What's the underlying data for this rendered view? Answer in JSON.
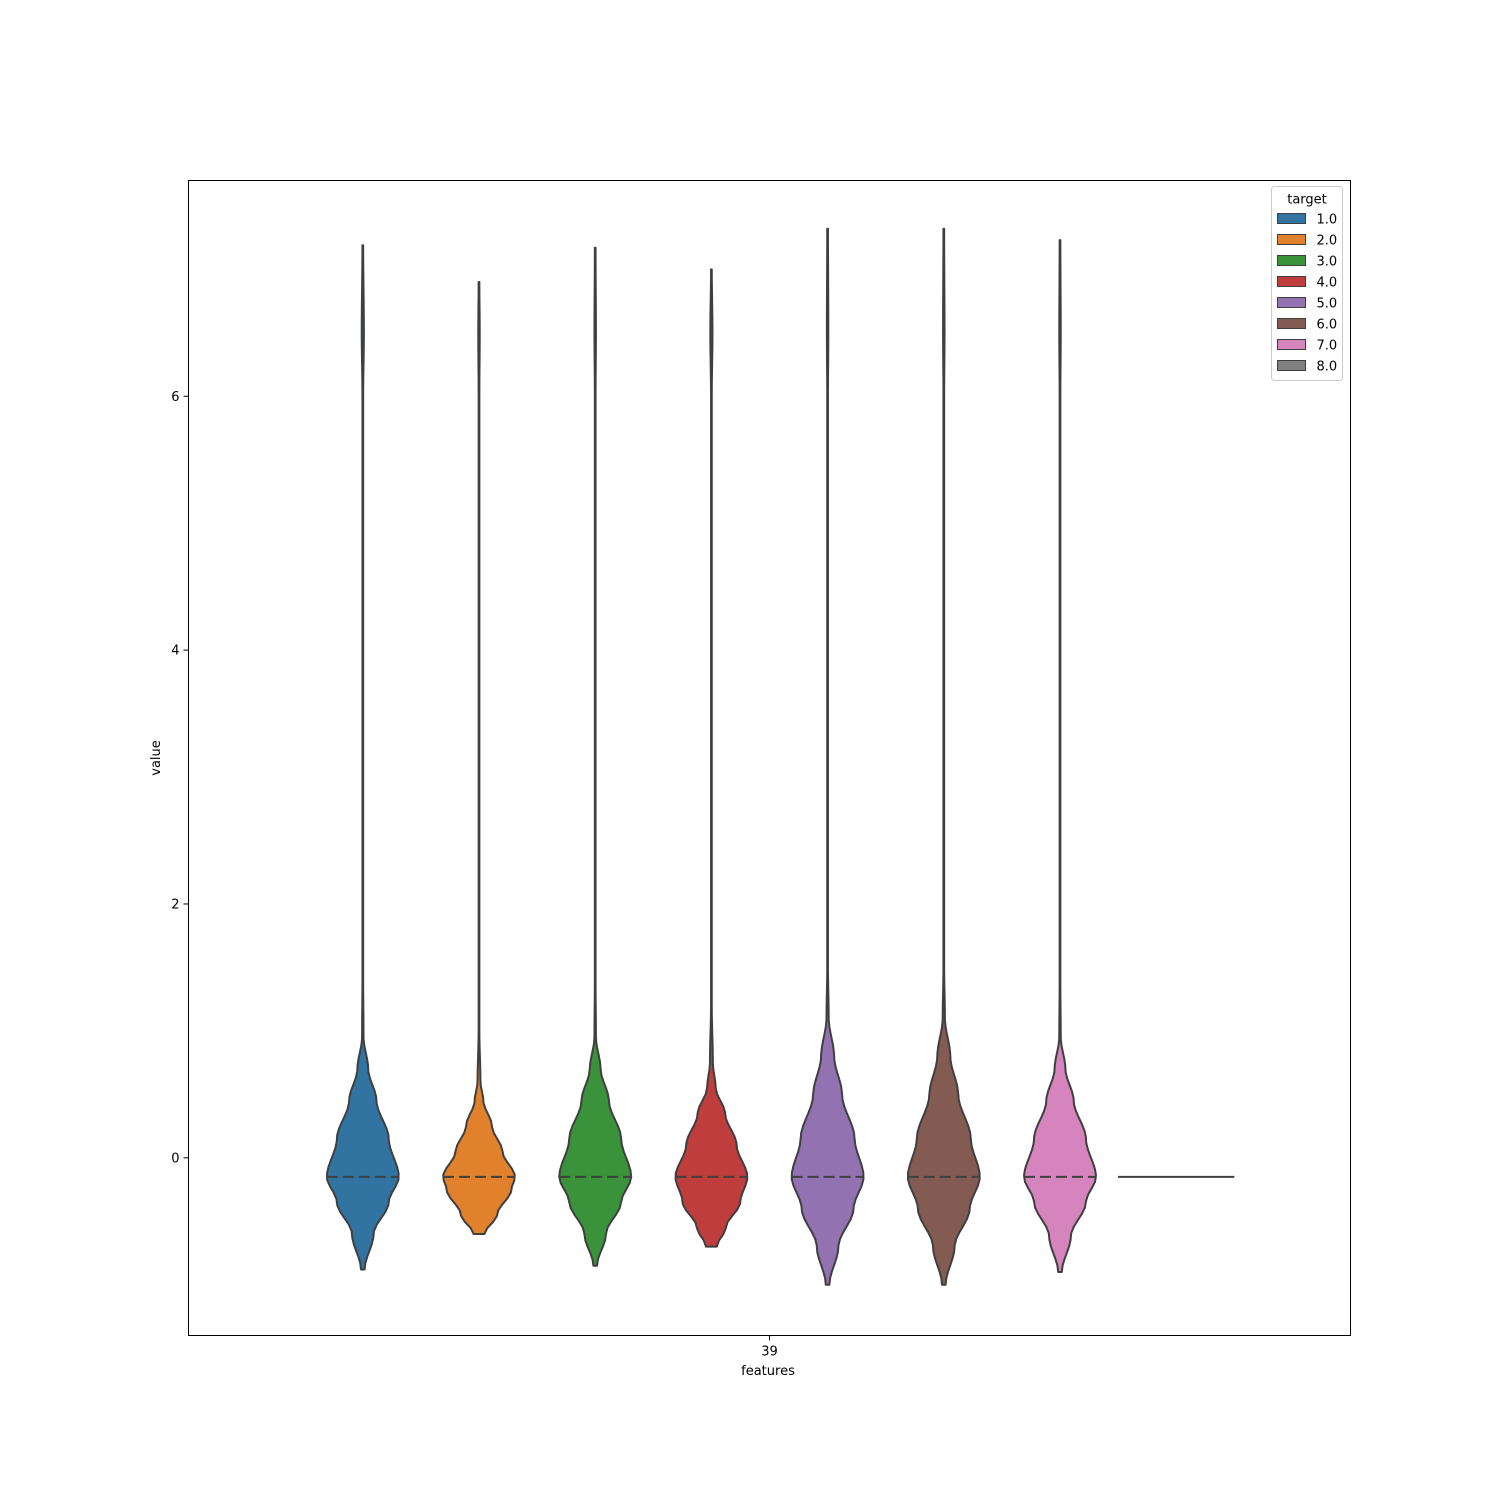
{
  "chart_data": {
    "type": "violin",
    "xlabel": "features",
    "ylabel": "value",
    "categories": [
      "39"
    ],
    "ylim": [
      -1.4,
      7.7
    ],
    "yticks": [
      0,
      2,
      4,
      6
    ],
    "grid": false,
    "legend": {
      "title": "target",
      "placement": "upper-right",
      "entries": [
        "1.0",
        "2.0",
        "3.0",
        "4.0",
        "5.0",
        "6.0",
        "7.0",
        "8.0"
      ]
    },
    "series": [
      {
        "name": "1.0",
        "color": "#3274a1",
        "min": -0.88,
        "max": 7.19,
        "median": -0.15,
        "density": [
          [
            -0.88,
            0.05
          ],
          [
            -0.6,
            0.3
          ],
          [
            -0.35,
            0.72
          ],
          [
            -0.15,
            1.0
          ],
          [
            0.15,
            0.72
          ],
          [
            0.45,
            0.38
          ],
          [
            0.7,
            0.15
          ],
          [
            0.95,
            0.02
          ],
          [
            1.4,
            0.01
          ],
          [
            6.0,
            0.01
          ],
          [
            6.5,
            0.03
          ],
          [
            7.19,
            0.01
          ]
        ]
      },
      {
        "name": "2.0",
        "color": "#e1812c",
        "min": -0.6,
        "max": 6.9,
        "median": -0.15,
        "density": [
          [
            -0.6,
            0.15
          ],
          [
            -0.45,
            0.5
          ],
          [
            -0.25,
            0.9
          ],
          [
            -0.15,
            1.0
          ],
          [
            0.05,
            0.65
          ],
          [
            0.25,
            0.36
          ],
          [
            0.45,
            0.12
          ],
          [
            0.6,
            0.04
          ],
          [
            1.0,
            0.01
          ],
          [
            6.0,
            0.01
          ],
          [
            6.5,
            0.02
          ],
          [
            6.9,
            0.01
          ]
        ]
      },
      {
        "name": "3.0",
        "color": "#3a923a",
        "min": -0.85,
        "max": 7.17,
        "median": -0.15,
        "density": [
          [
            -0.85,
            0.05
          ],
          [
            -0.6,
            0.3
          ],
          [
            -0.35,
            0.72
          ],
          [
            -0.15,
            1.0
          ],
          [
            0.15,
            0.72
          ],
          [
            0.45,
            0.38
          ],
          [
            0.7,
            0.15
          ],
          [
            0.95,
            0.02
          ],
          [
            1.4,
            0.01
          ],
          [
            6.0,
            0.01
          ],
          [
            6.5,
            0.02
          ],
          [
            7.17,
            0.01
          ]
        ]
      },
      {
        "name": "4.0",
        "color": "#c03d3e",
        "min": -0.7,
        "max": 7.0,
        "median": -0.15,
        "density": [
          [
            -0.7,
            0.15
          ],
          [
            -0.55,
            0.4
          ],
          [
            -0.35,
            0.8
          ],
          [
            -0.15,
            1.0
          ],
          [
            0.1,
            0.7
          ],
          [
            0.35,
            0.38
          ],
          [
            0.55,
            0.12
          ],
          [
            0.75,
            0.04
          ],
          [
            1.2,
            0.01
          ],
          [
            6.0,
            0.01
          ],
          [
            6.5,
            0.03
          ],
          [
            7.0,
            0.01
          ]
        ]
      },
      {
        "name": "5.0",
        "color": "#9372b2",
        "min": -1.0,
        "max": 7.32,
        "median": -0.15,
        "density": [
          [
            -1.0,
            0.05
          ],
          [
            -0.7,
            0.3
          ],
          [
            -0.4,
            0.72
          ],
          [
            -0.15,
            1.0
          ],
          [
            0.15,
            0.75
          ],
          [
            0.5,
            0.4
          ],
          [
            0.8,
            0.18
          ],
          [
            1.1,
            0.03
          ],
          [
            1.5,
            0.01
          ],
          [
            6.0,
            0.01
          ],
          [
            6.5,
            0.02
          ],
          [
            7.32,
            0.01
          ]
        ]
      },
      {
        "name": "6.0",
        "color": "#845b53",
        "min": -1.0,
        "max": 7.32,
        "median": -0.15,
        "density": [
          [
            -1.0,
            0.05
          ],
          [
            -0.7,
            0.3
          ],
          [
            -0.4,
            0.72
          ],
          [
            -0.15,
            1.0
          ],
          [
            0.15,
            0.75
          ],
          [
            0.5,
            0.4
          ],
          [
            0.8,
            0.18
          ],
          [
            1.1,
            0.03
          ],
          [
            1.5,
            0.01
          ],
          [
            6.0,
            0.01
          ],
          [
            6.5,
            0.02
          ],
          [
            7.32,
            0.01
          ]
        ]
      },
      {
        "name": "7.0",
        "color": "#d684bd",
        "min": -0.9,
        "max": 7.23,
        "median": -0.15,
        "density": [
          [
            -0.9,
            0.05
          ],
          [
            -0.62,
            0.3
          ],
          [
            -0.35,
            0.72
          ],
          [
            -0.15,
            1.0
          ],
          [
            0.15,
            0.72
          ],
          [
            0.45,
            0.38
          ],
          [
            0.7,
            0.15
          ],
          [
            0.95,
            0.02
          ],
          [
            1.4,
            0.01
          ],
          [
            6.0,
            0.01
          ],
          [
            6.5,
            0.02
          ],
          [
            7.23,
            0.01
          ]
        ]
      },
      {
        "name": "8.0",
        "color": "#7f7f7f",
        "min": -0.15,
        "max": -0.15,
        "median": -0.15,
        "density": []
      }
    ]
  }
}
